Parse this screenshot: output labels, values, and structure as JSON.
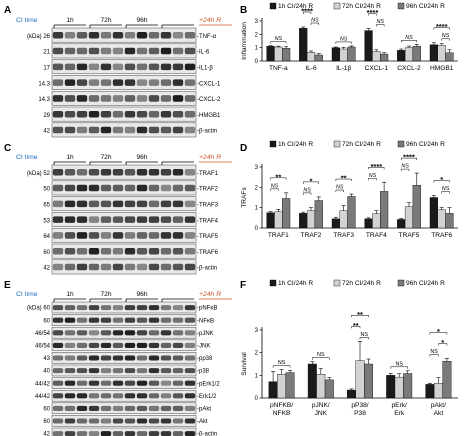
{
  "blots": [
    {
      "panel": "A",
      "header": {
        "ci_label": "CI time",
        "timepoints": [
          "1h",
          "72h",
          "96h"
        ],
        "recovery_label": "+24h R"
      },
      "kda_unit": "(kDa)",
      "rows": [
        {
          "kda": "26",
          "label": "-TNF-α"
        },
        {
          "kda": "21",
          "label": "-IL-6"
        },
        {
          "kda": "17",
          "label": "-IL1-β"
        },
        {
          "kda": "14.3",
          "label": "-CXCL-1"
        },
        {
          "kda": "14.3",
          "label": "-CXCL-2"
        },
        {
          "kda": "29",
          "label": "-HMGB1"
        },
        {
          "kda": "42",
          "label": "-β-actin"
        }
      ]
    },
    {
      "panel": "C",
      "header": {
        "ci_label": "CI time",
        "timepoints": [
          "1h",
          "72h",
          "96h"
        ],
        "recovery_label": "+24h R"
      },
      "kda_unit": "(kDa)",
      "rows": [
        {
          "kda": "52",
          "label": "-TRAF1"
        },
        {
          "kda": "50",
          "label": "-TRAF2"
        },
        {
          "kda": "65",
          "label": "-TRAF3"
        },
        {
          "kda": "53",
          "label": "-TRAF4"
        },
        {
          "kda": "64",
          "label": "-TRAF5"
        },
        {
          "kda": "60",
          "label": "-TRAF6"
        },
        {
          "kda": "42",
          "label": "-β-actin"
        }
      ]
    },
    {
      "panel": "E",
      "header": {
        "ci_label": "CI time",
        "timepoints": [
          "1h",
          "72h",
          "96h"
        ],
        "recovery_label": "+24h R"
      },
      "kda_unit": "(kDa)",
      "rows": [
        {
          "kda": "60",
          "label": "-pNFκB"
        },
        {
          "kda": "60",
          "label": "-NFκB"
        },
        {
          "kda": "46/54",
          "label": "-pJNK"
        },
        {
          "kda": "46/54",
          "label": "-JNK"
        },
        {
          "kda": "43",
          "label": "-pp38"
        },
        {
          "kda": "40",
          "label": "-p38"
        },
        {
          "kda": "44/42",
          "label": "-pErk1/2"
        },
        {
          "kda": "44/42",
          "label": "-Erk1/2"
        },
        {
          "kda": "60",
          "label": "-pAkt"
        },
        {
          "kda": "60",
          "label": "-Akt"
        },
        {
          "kda": "42",
          "label": "-β-actin"
        }
      ]
    }
  ],
  "chart_data": [
    {
      "panel": "B",
      "type": "bar",
      "ylabel": "Inflammation",
      "ylim": [
        0,
        3
      ],
      "yticks": [
        0,
        1,
        2,
        3
      ],
      "categories": [
        "TNF-a",
        "IL-6",
        "IL-1β",
        "CXCL-1",
        "CXCL-2",
        "HMGB1"
      ],
      "legend": [
        "1h CI/24h R",
        "72h CI/24h R",
        "96h CI/24h R"
      ],
      "legend_position": "top",
      "series": [
        {
          "name": "1h CI/24h R",
          "color": "#1a1a1a",
          "values": [
            1.1,
            2.45,
            1.0,
            2.28,
            0.8,
            1.22
          ],
          "errors": [
            0.05,
            0.1,
            0.05,
            0.15,
            0.1,
            0.15
          ]
        },
        {
          "name": "72h CI/24h R",
          "color": "#d2d2d2",
          "values": [
            1.05,
            0.65,
            0.9,
            0.72,
            1.0,
            1.18
          ],
          "errors": [
            0.06,
            0.1,
            0.12,
            0.12,
            0.12,
            0.12
          ]
        },
        {
          "name": "96h CI/24h R",
          "color": "#7a7a7a",
          "values": [
            0.95,
            0.45,
            1.05,
            0.52,
            1.1,
            0.62
          ],
          "errors": [
            0.12,
            0.1,
            0.08,
            0.1,
            0.15,
            0.22
          ]
        }
      ],
      "annotations": [
        {
          "group": 0,
          "levels": [
            [
              0,
              2,
              "NS"
            ]
          ]
        },
        {
          "group": 1,
          "levels": [
            [
              1,
              2,
              "NS"
            ],
            [
              0,
              1,
              "****"
            ]
          ]
        },
        {
          "group": 2,
          "levels": [
            [
              0,
              2,
              "NS"
            ]
          ]
        },
        {
          "group": 3,
          "levels": [
            [
              1,
              2,
              "NS"
            ],
            [
              0,
              1,
              "****"
            ]
          ]
        },
        {
          "group": 4,
          "levels": [
            [
              0,
              2,
              "NS"
            ]
          ]
        },
        {
          "group": 5,
          "levels": [
            [
              1,
              2,
              "NS"
            ],
            [
              0,
              2,
              "****"
            ]
          ]
        }
      ]
    },
    {
      "panel": "D",
      "type": "bar",
      "ylabel": "TRAFs",
      "ylim": [
        0,
        3
      ],
      "yticks": [
        0,
        1,
        2,
        3
      ],
      "categories": [
        "TRAF1",
        "TRAF2",
        "TRAF3",
        "TRAF4",
        "TRAF5",
        "TRAF6"
      ],
      "legend": [
        "1h CI/24h R",
        "72h CI/24h R",
        "96h CI/24h R"
      ],
      "legend_position": "top",
      "series": [
        {
          "name": "1h CI/24h R",
          "color": "#1a1a1a",
          "values": [
            0.75,
            0.72,
            0.45,
            0.45,
            0.42,
            1.5
          ],
          "errors": [
            0.05,
            0.06,
            0.08,
            0.05,
            0.05,
            0.1
          ]
        },
        {
          "name": "72h CI/24h R",
          "color": "#d2d2d2",
          "values": [
            0.8,
            0.85,
            0.85,
            0.7,
            1.05,
            0.9
          ],
          "errors": [
            0.12,
            0.15,
            0.25,
            0.15,
            0.2,
            0.1
          ]
        },
        {
          "name": "96h CI/24h R",
          "color": "#7a7a7a",
          "values": [
            1.45,
            1.35,
            1.55,
            1.8,
            2.1,
            0.72
          ],
          "errors": [
            0.28,
            0.18,
            0.12,
            0.45,
            0.6,
            0.28
          ]
        }
      ],
      "annotations": [
        {
          "group": 0,
          "levels": [
            [
              0,
              1,
              "NS"
            ],
            [
              0,
              2,
              "**"
            ]
          ]
        },
        {
          "group": 1,
          "levels": [
            [
              0,
              1,
              "NS"
            ],
            [
              0,
              2,
              "*"
            ]
          ]
        },
        {
          "group": 2,
          "levels": [
            [
              0,
              1,
              "NS"
            ],
            [
              0,
              2,
              "**"
            ]
          ]
        },
        {
          "group": 3,
          "levels": [
            [
              0,
              1,
              "NS"
            ],
            [
              0,
              2,
              "****"
            ]
          ]
        },
        {
          "group": 4,
          "levels": [
            [
              0,
              1,
              "NS"
            ],
            [
              0,
              2,
              "****"
            ]
          ]
        },
        {
          "group": 5,
          "levels": [
            [
              1,
              2,
              "NS"
            ],
            [
              0,
              2,
              "*"
            ]
          ]
        }
      ]
    },
    {
      "panel": "F",
      "type": "bar",
      "ylabel": "Survival",
      "ylim": [
        0,
        3
      ],
      "yticks": [
        0,
        1,
        2,
        3
      ],
      "categories": [
        "pNFKB/NFKB",
        "pJNK/JNK",
        "pP38/P38",
        "pErk/Erk",
        "pAkt/Akt"
      ],
      "category_lines": [
        [
          "pNFKB/",
          "NFKB"
        ],
        [
          "pJNK/",
          "JNK"
        ],
        [
          "pP38/",
          "P38"
        ],
        [
          "pErk/",
          "Erk"
        ],
        [
          "pAkt/",
          "Akt"
        ]
      ],
      "legend": [
        "1h CI/24h R",
        "72h CI/24h R",
        "96h CI/24h R"
      ],
      "legend_position": "top",
      "series": [
        {
          "name": "1h CI/24h R",
          "color": "#1a1a1a",
          "values": [
            0.72,
            1.5,
            0.35,
            1.0,
            0.6
          ],
          "errors": [
            0.45,
            0.1,
            0.05,
            0.08,
            0.05
          ]
        },
        {
          "name": "72h CI/24h R",
          "color": "#d2d2d2",
          "values": [
            1.05,
            1.05,
            1.65,
            0.92,
            0.65
          ],
          "errors": [
            0.2,
            0.25,
            0.85,
            0.15,
            0.25
          ]
        },
        {
          "name": "96h CI/24h R",
          "color": "#7a7a7a",
          "values": [
            1.12,
            0.8,
            1.5,
            1.08,
            1.62
          ],
          "errors": [
            0.1,
            0.1,
            0.22,
            0.12,
            0.12
          ]
        }
      ],
      "annotations": [
        {
          "group": 0,
          "levels": [
            [
              0,
              2,
              "NS"
            ]
          ]
        },
        {
          "group": 1,
          "levels": [
            [
              0,
              2,
              "NS"
            ]
          ]
        },
        {
          "group": 2,
          "levels": [
            [
              1,
              2,
              "NS"
            ],
            [
              0,
              1,
              "**"
            ],
            [
              0,
              2,
              "**"
            ]
          ]
        },
        {
          "group": 3,
          "levels": [
            [
              0,
              2,
              "NS"
            ]
          ]
        },
        {
          "group": 4,
          "levels": [
            [
              0,
              1,
              "NS"
            ],
            [
              1,
              2,
              "*"
            ],
            [
              0,
              2,
              "*"
            ]
          ]
        }
      ]
    }
  ]
}
